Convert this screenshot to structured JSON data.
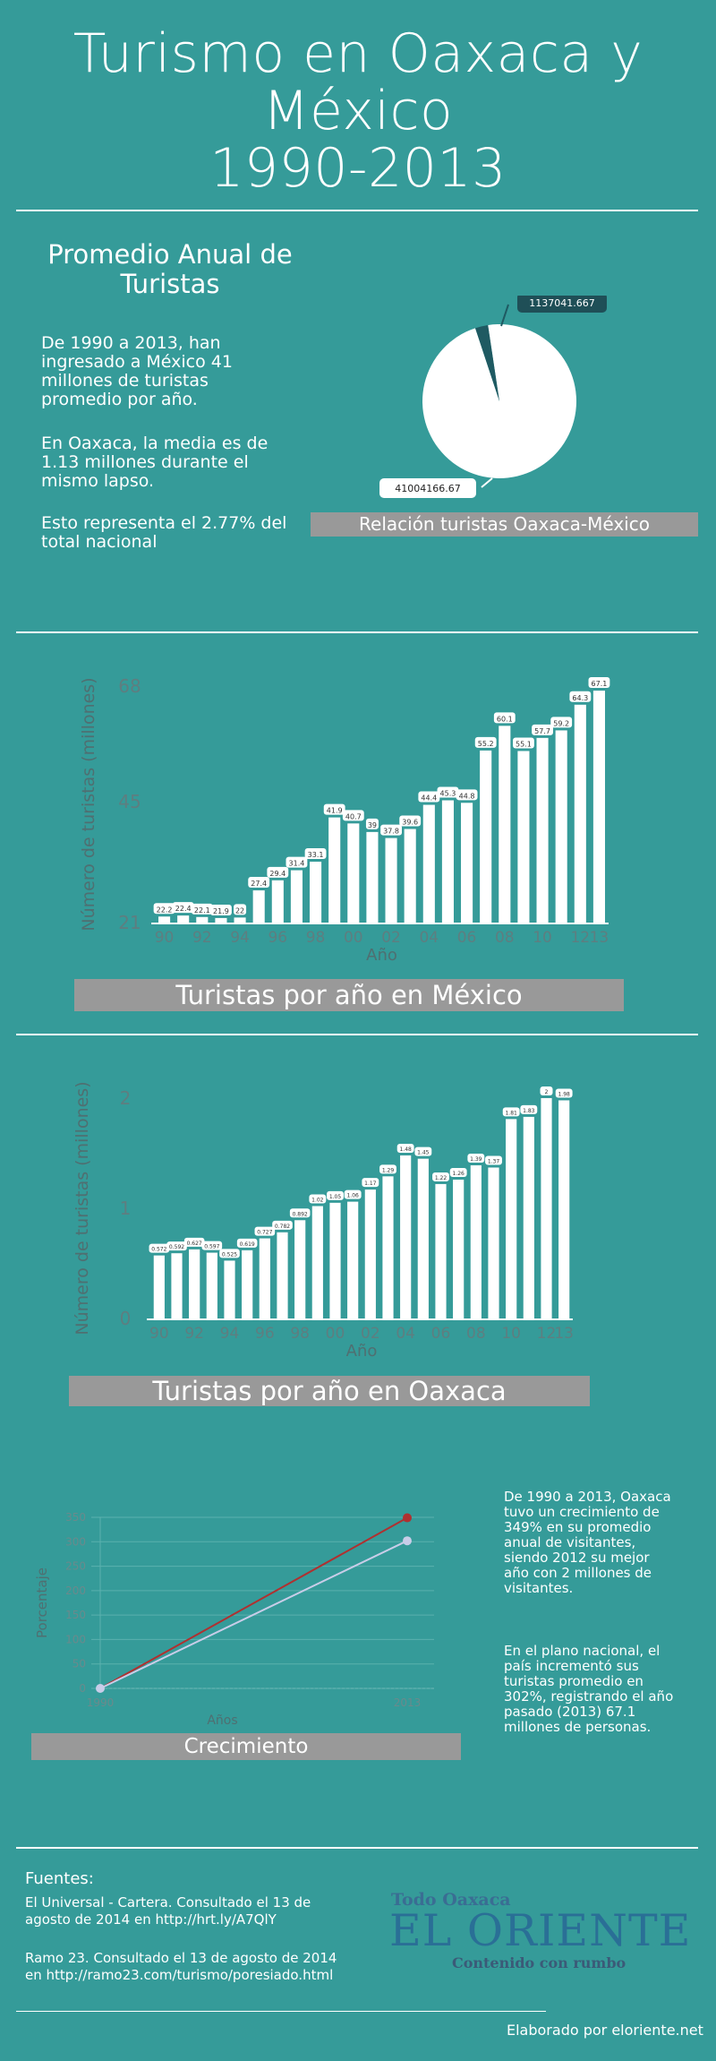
{
  "header": {
    "title_line1": "Turismo en Oaxaca y",
    "title_line2": "México",
    "title_line3": "1990-2013"
  },
  "section1": {
    "subtitle_line1": "Promedio Anual de",
    "subtitle_line2": "Turistas",
    "paragraph1": "De 1990 a 2013, han ingresado a México 41 millones de turistas promedio por año.",
    "paragraph2": "En Oaxaca, la media es de 1.13 millones durante el mismo lapso.",
    "paragraph3": "Esto representa el 2.77% del total nacional",
    "pie_caption": "Relación turistas Oaxaca-México"
  },
  "chart_mexico_caption": "Turistas por año en México",
  "chart_oaxaca_caption": "Turistas por año en Oaxaca",
  "growth": {
    "caption": "Crecimiento",
    "note1": "De 1990 a 2013, Oaxaca tuvo un crecimiento de 349% en su promedio anual de visitantes, siendo 2012 su mejor año con 2 millones de visitantes.",
    "note2": "En el plano nacional, el país incrementó sus turistas promedio en 302%, registrando el año pasado (2013) 67.1 millones de personas."
  },
  "footer": {
    "heading": "Fuentes:",
    "source1": "El Universal - Cartera. Consultado el 13 de agosto de 2014 en http://hrt.ly/A7QlY",
    "source2": "Ramo 23. Consultado el 13 de agosto de 2014 en http://ramo23.com/turismo/poresiado.html",
    "brand_top": "Todo Oaxaca",
    "brand_main": "EL ORIENTE",
    "brand_tag": "Contenido con rumbo",
    "credit": "Elaborado por eloriente.net"
  },
  "colors": {
    "background": "#359b99",
    "caption_bar": "#999999",
    "pie_small": "#1f5a62",
    "growth_oaxaca": "#b03030",
    "growth_mexico": "#c8cde8"
  },
  "chart_data": [
    {
      "type": "pie",
      "values": [
        41004166.67,
        1137041.667
      ],
      "labels": [
        "41004166.67",
        "1137041.667"
      ],
      "colors": [
        "#ffffff",
        "#1f5a62"
      ]
    },
    {
      "type": "bar",
      "xlabel": "Año",
      "ylabel": "Número de turistas (millones)",
      "ylim": [
        21,
        68
      ],
      "yticks": [
        "21",
        "45",
        "68"
      ],
      "xticks": [
        "90",
        "92",
        "94",
        "96",
        "98",
        "00",
        "02",
        "04",
        "06",
        "08",
        "10",
        "12",
        "13"
      ],
      "categories": [
        "1990",
        "1991",
        "1992",
        "1993",
        "1994",
        "1995",
        "1996",
        "1997",
        "1998",
        "1999",
        "2000",
        "2001",
        "2002",
        "2003",
        "2004",
        "2005",
        "2006",
        "2007",
        "2008",
        "2009",
        "2010",
        "2011",
        "2012",
        "2013"
      ],
      "values": [
        22.2,
        22.4,
        22.1,
        21.9,
        22,
        27.4,
        29.4,
        31.4,
        33.1,
        41.9,
        40.7,
        39,
        37.8,
        39.6,
        44.4,
        45.3,
        44.8,
        55.2,
        60.1,
        55.1,
        57.7,
        59.2,
        64.3,
        67.1
      ],
      "data_labels": [
        "22.2",
        "22.4",
        "22.1",
        "21.9",
        "22",
        "27.4",
        "29.4",
        "31.4",
        "33.1",
        "41.9",
        "40.7",
        "39",
        "37.8",
        "39.6",
        "44.4",
        "45.3",
        "44.8",
        "55.2",
        "60.1",
        "55.1",
        "57.7",
        "59.2",
        "64.3",
        "67.1"
      ],
      "grid": false
    },
    {
      "type": "bar",
      "xlabel": "Año",
      "ylabel": "Número de turistas (millones)",
      "ylim": [
        0,
        2
      ],
      "yticks": [
        "0",
        "1",
        "2"
      ],
      "xticks": [
        "90",
        "92",
        "94",
        "96",
        "98",
        "00",
        "02",
        "04",
        "06",
        "08",
        "10",
        "12",
        "13"
      ],
      "categories": [
        "1990",
        "1991",
        "1992",
        "1993",
        "1994",
        "1995",
        "1996",
        "1997",
        "1998",
        "1999",
        "2000",
        "2001",
        "2002",
        "2003",
        "2004",
        "2005",
        "2006",
        "2007",
        "2008",
        "2009",
        "2010",
        "2011",
        "2012",
        "2013"
      ],
      "values": [
        0.572,
        0.592,
        0.627,
        0.597,
        0.525,
        0.619,
        0.727,
        0.782,
        0.892,
        1.02,
        1.05,
        1.06,
        1.17,
        1.29,
        1.48,
        1.45,
        1.22,
        1.26,
        1.39,
        1.37,
        1.81,
        1.83,
        2,
        1.98
      ],
      "data_labels": [
        "0.572",
        "0.592",
        "0.627",
        "0.597",
        "0.525",
        "0.619",
        "0.727",
        "0.782",
        "0.892",
        "1.02",
        "1.05",
        "1.06",
        "1.17",
        "1.29",
        "1.48",
        "1.45",
        "1.22",
        "1.26",
        "1.39",
        "1.37",
        "1.81",
        "1.83",
        "2",
        "1.98"
      ],
      "grid": false
    },
    {
      "type": "line",
      "xlabel": "Años",
      "ylabel": "Porcentaje",
      "ylim": [
        0,
        350
      ],
      "yticks": [
        "0",
        "50",
        "100",
        "150",
        "200",
        "250",
        "300",
        "350"
      ],
      "x": [
        "1990",
        "2013"
      ],
      "series": [
        {
          "values": [
            0,
            349
          ],
          "color": "#b03030"
        },
        {
          "values": [
            0,
            302
          ],
          "color": "#c8cde8"
        }
      ],
      "grid": true
    }
  ]
}
